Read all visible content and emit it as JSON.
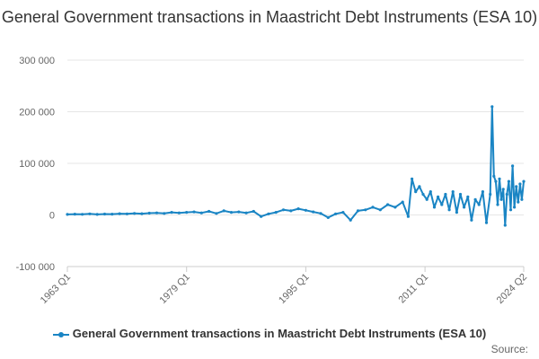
{
  "chart_data": {
    "type": "line",
    "title": "General Government transactions in Maastricht Debt Instruments (ESA 10)",
    "xlabel": "",
    "ylabel": "",
    "ylim": [
      -100000,
      300000
    ],
    "y_ticks": [
      {
        "value": 300000,
        "label": "300 000"
      },
      {
        "value": 200000,
        "label": "200 000"
      },
      {
        "value": 100000,
        "label": "100 000"
      },
      {
        "value": 0,
        "label": "0"
      },
      {
        "value": -100000,
        "label": "-100 000"
      }
    ],
    "x_range": [
      "1963 Q1",
      "2024 Q2"
    ],
    "x_ticks": [
      "1963 Q1",
      "1979 Q1",
      "1995 Q1",
      "2011 Q1",
      "2024 Q2"
    ],
    "grid": "horizontal",
    "legend_position": "bottom",
    "series": [
      {
        "name": "General Government transactions in Maastricht Debt Instruments (ESA 10)",
        "color": "#1a85c4",
        "x": [
          "1963 Q1",
          "1964 Q1",
          "1965 Q1",
          "1966 Q1",
          "1967 Q1",
          "1968 Q1",
          "1969 Q1",
          "1970 Q1",
          "1971 Q1",
          "1972 Q1",
          "1973 Q1",
          "1974 Q1",
          "1975 Q1",
          "1976 Q1",
          "1977 Q1",
          "1978 Q1",
          "1979 Q1",
          "1980 Q1",
          "1981 Q1",
          "1982 Q1",
          "1983 Q1",
          "1984 Q1",
          "1985 Q1",
          "1986 Q1",
          "1987 Q1",
          "1988 Q1",
          "1989 Q1",
          "1990 Q1",
          "1991 Q1",
          "1992 Q1",
          "1993 Q1",
          "1994 Q1",
          "1995 Q1",
          "1996 Q1",
          "1997 Q1",
          "1998 Q1",
          "1999 Q1",
          "2000 Q1",
          "2001 Q1",
          "2002 Q1",
          "2003 Q1",
          "2004 Q1",
          "2005 Q1",
          "2006 Q1",
          "2007 Q1",
          "2008 Q1",
          "2008 Q4",
          "2009 Q2",
          "2009 Q4",
          "2010 Q2",
          "2010 Q4",
          "2011 Q2",
          "2011 Q4",
          "2012 Q2",
          "2012 Q4",
          "2013 Q2",
          "2013 Q4",
          "2014 Q2",
          "2014 Q4",
          "2015 Q2",
          "2015 Q4",
          "2016 Q2",
          "2016 Q4",
          "2017 Q2",
          "2017 Q4",
          "2018 Q2",
          "2018 Q4",
          "2019 Q2",
          "2019 Q4",
          "2020 Q1",
          "2020 Q2",
          "2020 Q3",
          "2020 Q4",
          "2021 Q1",
          "2021 Q2",
          "2021 Q3",
          "2021 Q4",
          "2022 Q1",
          "2022 Q2",
          "2022 Q3",
          "2022 Q4",
          "2023 Q1",
          "2023 Q2",
          "2023 Q3",
          "2023 Q4",
          "2024 Q1",
          "2024 Q2"
        ],
        "values": [
          1000,
          1500,
          1200,
          2000,
          1000,
          1800,
          1500,
          2500,
          2000,
          3000,
          2500,
          3500,
          4000,
          3000,
          5000,
          4000,
          5000,
          6000,
          4000,
          7000,
          3000,
          8000,
          5000,
          6000,
          4000,
          7000,
          -3000,
          2000,
          5000,
          10000,
          8000,
          12000,
          9000,
          6000,
          3000,
          -5000,
          2000,
          5000,
          -10000,
          8000,
          10000,
          15000,
          10000,
          20000,
          15000,
          25000,
          -3000,
          70000,
          45000,
          55000,
          40000,
          30000,
          45000,
          15000,
          35000,
          20000,
          40000,
          10000,
          45000,
          5000,
          40000,
          15000,
          35000,
          -10000,
          30000,
          20000,
          45000,
          -15000,
          40000,
          210000,
          75000,
          65000,
          20000,
          70000,
          30000,
          50000,
          -20000,
          40000,
          65000,
          10000,
          95000,
          15000,
          55000,
          25000,
          60000,
          30000,
          65000
        ]
      }
    ]
  },
  "source_label": "Source:"
}
